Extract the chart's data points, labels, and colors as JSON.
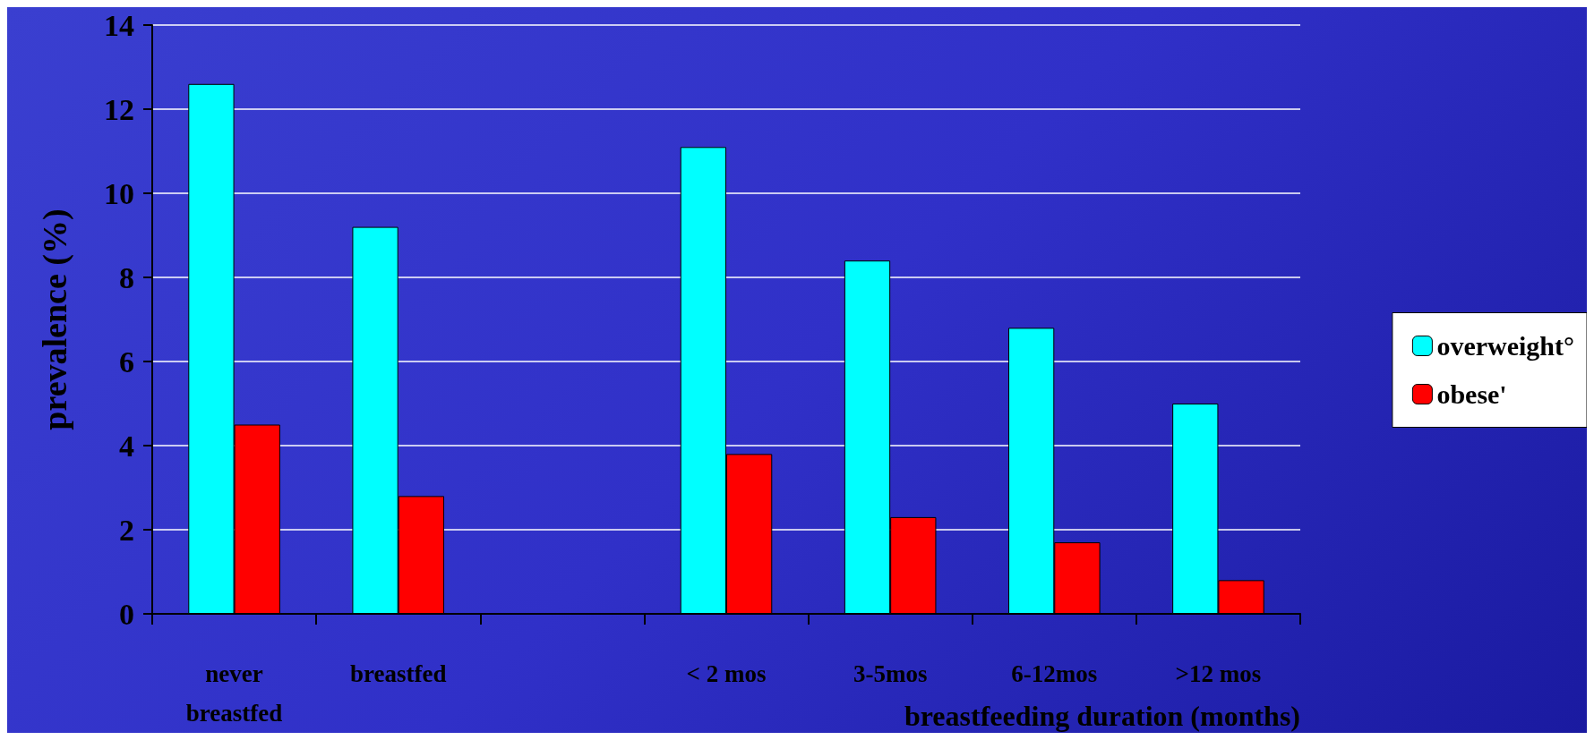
{
  "chart_data": {
    "type": "bar",
    "ylabel": "prevalence (%)",
    "xlabel": "breastfeeding duration (months)",
    "categories": [
      "never\nbreastfed",
      "breastfed",
      null,
      "< 2 mos",
      "3-5mos",
      "6-12mos",
      ">12 mos"
    ],
    "series": [
      {
        "name": "overweight°",
        "color": "#00ffff",
        "values": [
          12.6,
          9.2,
          null,
          11.1,
          8.4,
          6.8,
          5.0
        ]
      },
      {
        "name": "obese'",
        "color": "#ff0000",
        "values": [
          4.5,
          2.8,
          null,
          3.8,
          2.3,
          1.7,
          0.8
        ]
      }
    ],
    "ylim": [
      0,
      14
    ],
    "yticks": [
      0,
      2,
      4,
      6,
      8,
      10,
      12,
      14
    ],
    "grid": "y",
    "legend": "right"
  }
}
